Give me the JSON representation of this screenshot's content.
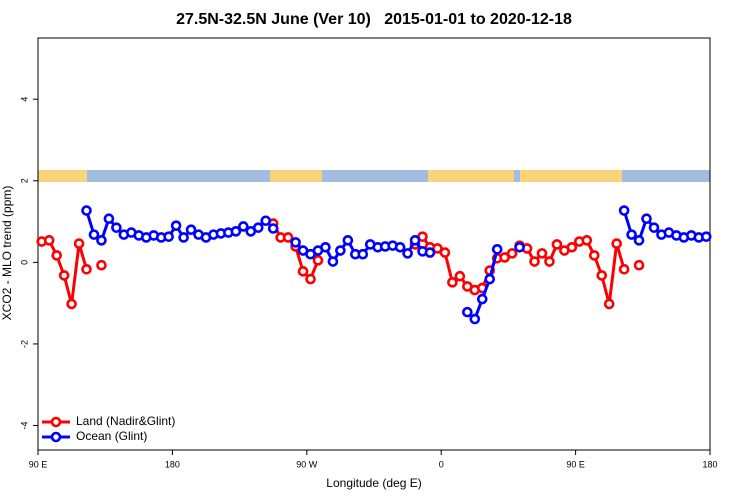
{
  "chart_data": {
    "type": "line",
    "title": "27.5N-32.5N June (Ver 10)   2015-01-01 to 2020-12-18",
    "xlabel": "Longitude (deg E)",
    "ylabel": "XCO2 - MLO trend (ppm)",
    "x": [
      92.5,
      97.5,
      102.5,
      107.5,
      112.5,
      117.5,
      122.5,
      127.5,
      132.5,
      137.5,
      142.5,
      147.5,
      152.5,
      157.5,
      162.5,
      167.5,
      172.5,
      177.5,
      182.5,
      187.5,
      192.5,
      197.5,
      202.5,
      207.5,
      212.5,
      217.5,
      222.5,
      227.5,
      232.5,
      237.5,
      242.5,
      247.5,
      252.5,
      257.5,
      262.5,
      267.5,
      272.5,
      277.5,
      282.5,
      287.5,
      292.5,
      297.5,
      302.5,
      307.5,
      312.5,
      317.5,
      322.5,
      327.5,
      332.5,
      337.5,
      342.5,
      347.5,
      352.5,
      357.5,
      362.5,
      367.5,
      372.5,
      377.5,
      382.5,
      387.5,
      392.5,
      397.5,
      402.5,
      407.5,
      412.5,
      417.5,
      422.5,
      427.5,
      432.5,
      437.5,
      442.5,
      447.5,
      452.5,
      457.5,
      462.5,
      467.5,
      472.5,
      477.5,
      482.5,
      487.5,
      492.5,
      497.5,
      502.5,
      507.5,
      512.5,
      517.5,
      522.5,
      527.5,
      532.5,
      537.5
    ],
    "series": [
      {
        "name": "Land (Nadir&Glint)",
        "color": "#ff0000",
        "values": [
          0.51,
          0.54,
          0.17,
          -0.32,
          -1.02,
          0.46,
          -0.17,
          null,
          -0.07,
          null,
          null,
          null,
          null,
          null,
          null,
          null,
          null,
          null,
          null,
          null,
          null,
          null,
          null,
          null,
          null,
          null,
          null,
          null,
          null,
          null,
          null,
          0.95,
          0.61,
          0.61,
          0.39,
          -0.22,
          -0.41,
          0.05,
          null,
          null,
          null,
          null,
          null,
          null,
          null,
          null,
          null,
          null,
          null,
          null,
          0.44,
          0.63,
          0.37,
          0.34,
          0.24,
          -0.49,
          -0.34,
          -0.59,
          -0.68,
          -0.63,
          -0.2,
          0.1,
          0.12,
          0.22,
          0.41,
          0.34,
          0.02,
          0.22,
          0.02,
          0.44,
          0.29,
          0.37,
          0.51,
          0.54,
          0.17,
          -0.32,
          -1.02,
          0.46,
          -0.17,
          null,
          -0.07,
          null,
          null,
          null,
          null,
          null,
          null,
          null,
          null,
          null
        ]
      },
      {
        "name": "Ocean (Glint)",
        "color": "#0000ff",
        "values": [
          null,
          null,
          null,
          null,
          null,
          null,
          1.27,
          0.68,
          0.54,
          1.07,
          0.85,
          0.68,
          0.73,
          0.66,
          0.61,
          0.66,
          0.61,
          0.63,
          0.9,
          0.61,
          0.8,
          0.68,
          0.61,
          0.68,
          0.71,
          0.73,
          0.76,
          0.88,
          0.76,
          0.85,
          1.02,
          0.83,
          null,
          null,
          0.49,
          0.29,
          0.2,
          0.29,
          0.37,
          0.02,
          0.29,
          0.54,
          0.2,
          0.2,
          0.44,
          0.37,
          0.39,
          0.41,
          0.37,
          0.22,
          0.54,
          0.27,
          0.24,
          null,
          null,
          null,
          null,
          -1.22,
          -1.39,
          -0.9,
          -0.41,
          0.32,
          null,
          null,
          0.37,
          null,
          null,
          null,
          null,
          null,
          null,
          null,
          null,
          null,
          null,
          null,
          null,
          null,
          1.27,
          0.68,
          0.54,
          1.07,
          0.85,
          0.68,
          0.73,
          0.66,
          0.61,
          0.66,
          0.61,
          0.63
        ]
      }
    ],
    "xlim": [
      90,
      540
    ],
    "xticks": [
      {
        "value": 90,
        "label": "90 E"
      },
      {
        "value": 180,
        "label": "180"
      },
      {
        "value": 270,
        "label": "90 W"
      },
      {
        "value": 360,
        "label": "0"
      },
      {
        "value": 450,
        "label": "90 E"
      },
      {
        "value": 540,
        "label": "180"
      }
    ],
    "ylim": [
      -4.6,
      5.5
    ],
    "yticks": [
      -4,
      -2,
      0,
      2,
      4
    ],
    "legend": "bottom-left"
  }
}
